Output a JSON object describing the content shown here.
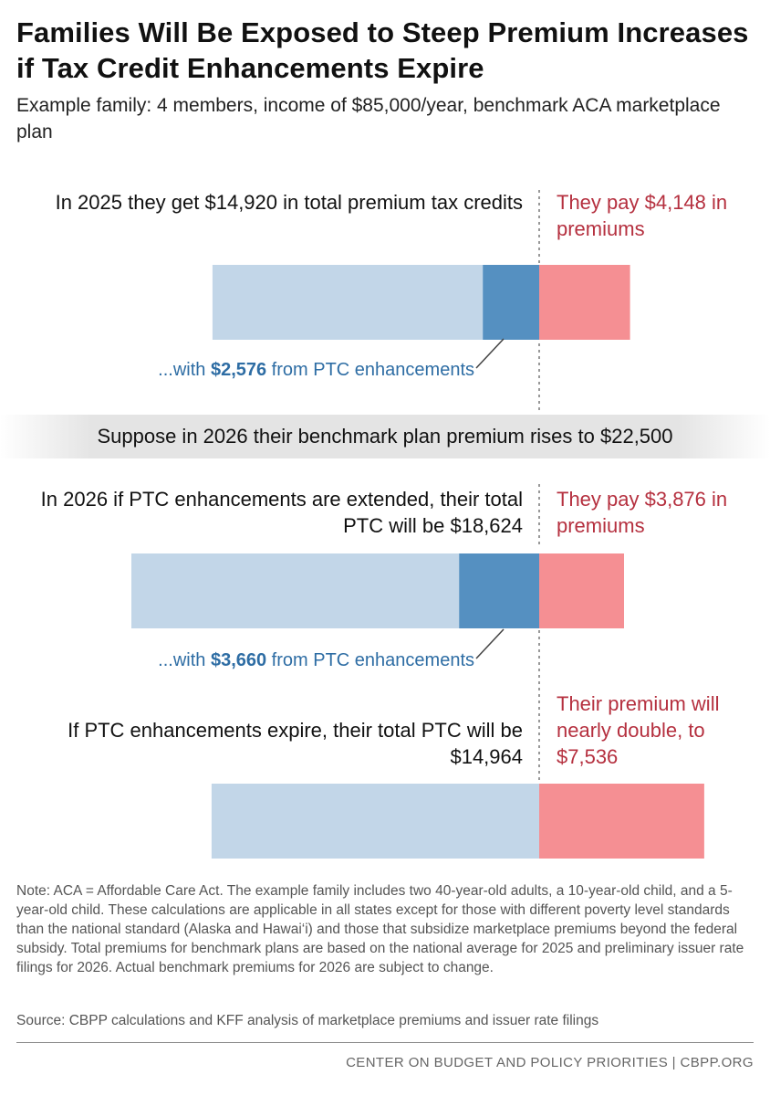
{
  "title": "Families Will Be Exposed to Steep Premium Increases if Tax Credit Enhancements Expire",
  "subtitle": "Example family: 4 members, income of $85,000/year, benchmark ACA marketplace plan",
  "colors": {
    "base_ptc": "#c2d6e8",
    "enhancement": "#5590c1",
    "premium": "#f58f93",
    "red_text": "#b5303f",
    "blue_text": "#2e6da4"
  },
  "sections": {
    "s2025": {
      "left_label": "In 2025 they get $14,920 in total premium tax credits",
      "right_label": "They pay $4,148 in premiums",
      "enh_prefix": "...with ",
      "enh_value": "$2,576",
      "enh_suffix": " from PTC enhancements"
    },
    "banner": "Suppose in 2026 their benchmark plan premium rises to $22,500",
    "s2026_extended": {
      "left_label": "In 2026 if PTC enhancements are extended, their total PTC will be $18,624",
      "right_label": "They pay $3,876 in premiums",
      "enh_prefix": "...with ",
      "enh_value": "$3,660",
      "enh_suffix": " from PTC enhancements"
    },
    "s2026_expire": {
      "left_label": "If PTC enhancements expire, their total PTC will be $14,964",
      "right_label": "Their premium will nearly double, to $7,536"
    }
  },
  "chart_data": {
    "type": "bar",
    "orientation": "horizontal",
    "stacked": true,
    "alignment": "PTC portion ends at a common dividing line; premiums extend to the right",
    "categories": [
      "2025",
      "2026 (enhancements extended)",
      "2026 (enhancements expire)"
    ],
    "series": [
      {
        "name": "Base premium tax credit",
        "values": [
          12344,
          14964,
          14964
        ]
      },
      {
        "name": "PTC enhancements",
        "values": [
          2576,
          3660,
          0
        ]
      },
      {
        "name": "Premiums paid by family",
        "values": [
          4148,
          3876,
          7536
        ]
      }
    ],
    "totals": {
      "total_ptc": [
        14920,
        18624,
        14964
      ],
      "benchmark_premium": [
        19068,
        22500,
        22500
      ]
    }
  },
  "note": "Note: ACA = Affordable Care Act. The example family includes two 40-year-old adults, a 10-year-old child, and a 5-year-old child. These calculations are applicable in all states except for those with different poverty level standards than the national standard (Alaska and Hawai‘i) and those that subsidize marketplace premiums beyond the federal subsidy. Total premiums for benchmark plans are based on the national average for 2025 and preliminary issuer rate filings for 2026. Actual benchmark premiums for 2026 are subject to change.",
  "source": "Source: CBPP calculations and KFF analysis of marketplace premiums and issuer rate filings",
  "footer": "CENTER ON BUDGET AND POLICY PRIORITIES | CBPP.ORG"
}
